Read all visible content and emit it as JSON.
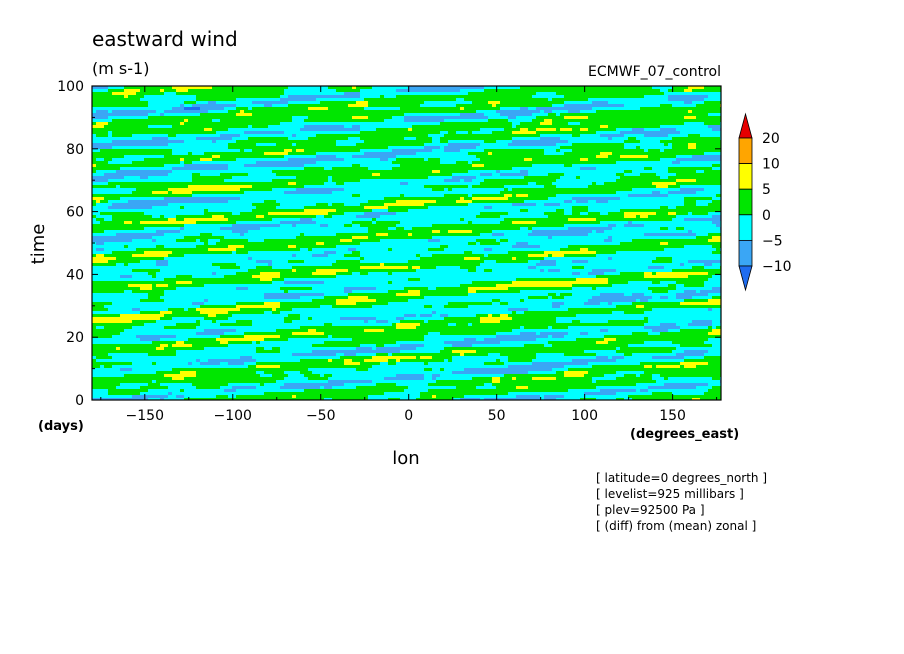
{
  "chart_data": {
    "type": "heatmap",
    "title": "eastward wind",
    "subtitle": "(m s-1)",
    "dataset_label": "ECMWF_07_control",
    "xlabel": "lon",
    "x_units": "(degrees_east)",
    "ylabel": "time",
    "y_units": "(days)",
    "xlim": [
      -180,
      177.5
    ],
    "ylim": [
      0,
      100
    ],
    "x_ticks": [
      -150,
      -100,
      -50,
      0,
      50,
      100,
      150
    ],
    "y_ticks": [
      0,
      20,
      40,
      60,
      80,
      100
    ],
    "x_tick_labels": [
      "−150",
      "−100",
      "−50",
      "0",
      "50",
      "100",
      "150"
    ],
    "y_tick_labels": [
      "0",
      "20",
      "40",
      "60",
      "80",
      "100"
    ],
    "colorbar": {
      "levels": [
        -10,
        -5,
        0,
        5,
        10,
        20
      ],
      "labels": [
        "−10",
        "−5",
        "0",
        "5",
        "10",
        "20"
      ],
      "colors": [
        "#1e6cf0",
        "#3aa6f5",
        "#00ffff",
        "#00e600",
        "#ffff00",
        "#ffa500",
        "#e60000"
      ],
      "extend": "both"
    },
    "info_lines": [
      "[ latitude=0 degrees_north ]",
      "[ levelist=925 millibars ]",
      "[ plev=92500 Pa ]",
      "[ (diff) from (mean) zonal ]"
    ],
    "field_description": "Hovmoller of eastward wind anomaly; eastward-propagating diagonal bands of positive (yellow/orange) and negative (blue) anomalies, mostly between -5 and +5 m s-1"
  }
}
